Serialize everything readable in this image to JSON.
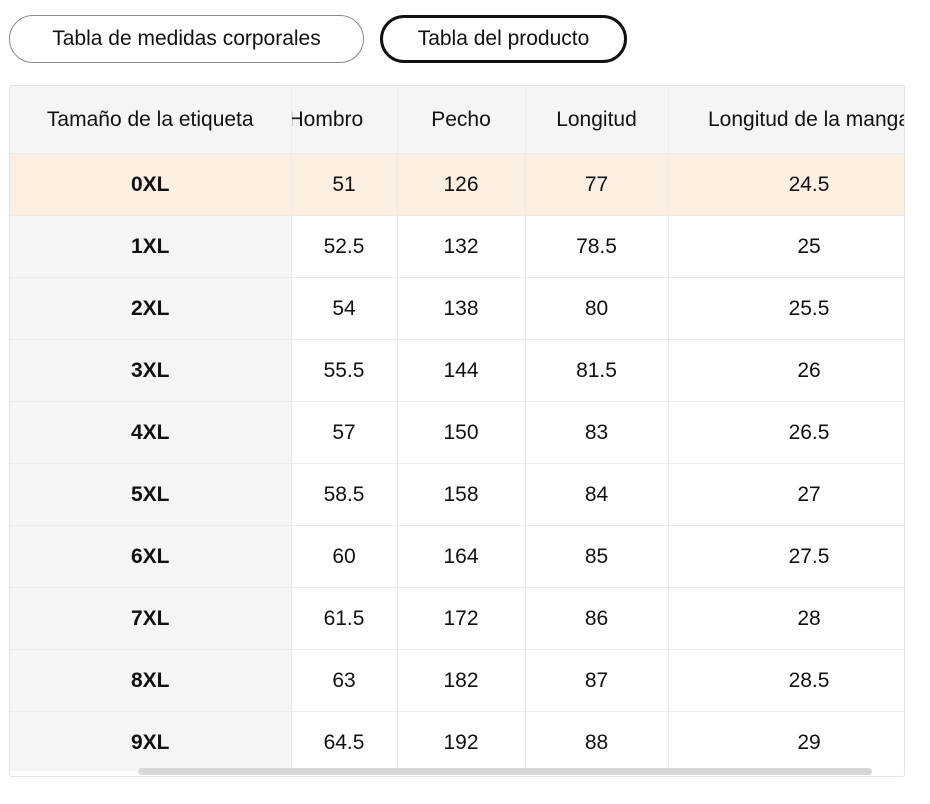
{
  "tabs": {
    "body_measurements": "Tabla de medidas corporales",
    "product": "Tabla del producto",
    "active": "product"
  },
  "table": {
    "headers": [
      "Tamaño de la etiqueta",
      "Hombro",
      "Pecho",
      "Longitud",
      "Longitud de la manga"
    ],
    "rows": [
      {
        "size": "0XL",
        "shoulder": "51",
        "chest": "126",
        "length": "77",
        "sleeve": "24.5"
      },
      {
        "size": "1XL",
        "shoulder": "52.5",
        "chest": "132",
        "length": "78.5",
        "sleeve": "25"
      },
      {
        "size": "2XL",
        "shoulder": "54",
        "chest": "138",
        "length": "80",
        "sleeve": "25.5"
      },
      {
        "size": "3XL",
        "shoulder": "55.5",
        "chest": "144",
        "length": "81.5",
        "sleeve": "26"
      },
      {
        "size": "4XL",
        "shoulder": "57",
        "chest": "150",
        "length": "83",
        "sleeve": "26.5"
      },
      {
        "size": "5XL",
        "shoulder": "58.5",
        "chest": "158",
        "length": "84",
        "sleeve": "27"
      },
      {
        "size": "6XL",
        "shoulder": "60",
        "chest": "164",
        "length": "85",
        "sleeve": "27.5"
      },
      {
        "size": "7XL",
        "shoulder": "61.5",
        "chest": "172",
        "length": "86",
        "sleeve": "28"
      },
      {
        "size": "8XL",
        "shoulder": "63",
        "chest": "182",
        "length": "87",
        "sleeve": "28.5"
      },
      {
        "size": "9XL",
        "shoulder": "64.5",
        "chest": "192",
        "length": "88",
        "sleeve": "29"
      }
    ],
    "highlight_row": 0
  },
  "colors": {
    "highlight": "#fdf0e2",
    "header_bg": "#f5f5f5",
    "active_tab_border": "#111111"
  }
}
